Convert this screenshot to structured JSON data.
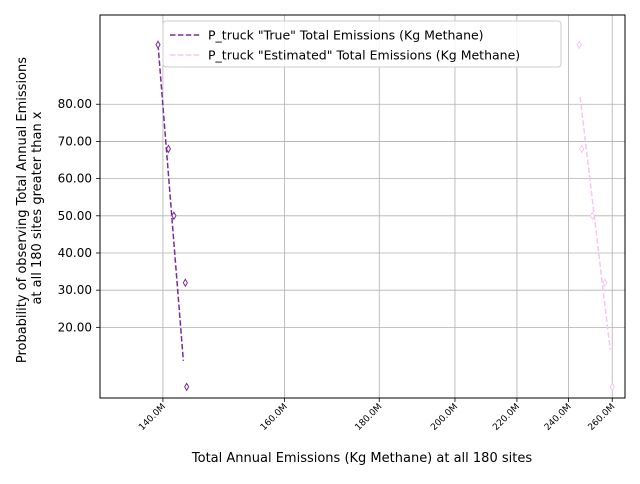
{
  "chart_data": {
    "type": "line",
    "title": "",
    "xlabel": "Total Annual Emissions (Kg Methane) at all 180 sites",
    "ylabel_lines": [
      "Probability of observing Total Annual Emissions",
      "at all 180 sites greater than x"
    ],
    "xlim": [
      131500000,
      266500000
    ],
    "ylim": [
      104,
      1
    ],
    "y_inverted": true,
    "x_scale": "reciprocal",
    "grid": true,
    "legend_position": "top-right",
    "x_ticks": [
      {
        "value": 140000000,
        "label": "140.0M"
      },
      {
        "value": 160000000,
        "label": "160.0M"
      },
      {
        "value": 180000000,
        "label": "180.0M"
      },
      {
        "value": 200000000,
        "label": "200.0M"
      },
      {
        "value": 220000000,
        "label": "220.0M"
      },
      {
        "value": 240000000,
        "label": "240.0M"
      },
      {
        "value": 260000000,
        "label": "260.0M"
      }
    ],
    "y_ticks": [
      {
        "value": 20,
        "label": "20.00"
      },
      {
        "value": 30,
        "label": "30.00"
      },
      {
        "value": 40,
        "label": "40.00"
      },
      {
        "value": 50,
        "label": "50.00"
      },
      {
        "value": 60,
        "label": "60.00"
      },
      {
        "value": 70,
        "label": "70.00"
      },
      {
        "value": 80,
        "label": "80.00"
      }
    ],
    "series": [
      {
        "name": "P_truck \"True\" Total Emissions (Kg Methane)",
        "color": "#7b2a9e",
        "line_style": "dashed",
        "marker": "thin-diamond",
        "points": [
          {
            "x": 139300000,
            "y": 96
          },
          {
            "x": 140800000,
            "y": 68
          },
          {
            "x": 141600000,
            "y": 50
          },
          {
            "x": 143300000,
            "y": 32
          },
          {
            "x": 143500000,
            "y": 4
          }
        ],
        "fit_line": [
          {
            "x": 139300000,
            "y": 96
          },
          {
            "x": 143000000,
            "y": 11
          }
        ]
      },
      {
        "name": "P_truck \"Estimated\" Total Emissions (Kg Methane)",
        "color": "#f7c6f2",
        "line_style": "dashed",
        "marker": "thin-diamond",
        "points": [
          {
            "x": 244600000,
            "y": 96
          },
          {
            "x": 245700000,
            "y": 68
          },
          {
            "x": 250500000,
            "y": 50
          },
          {
            "x": 256400000,
            "y": 32
          },
          {
            "x": 260000000,
            "y": 4
          }
        ],
        "fit_line": [
          {
            "x": 245000000,
            "y": 82
          },
          {
            "x": 259000000,
            "y": 14
          }
        ]
      }
    ]
  }
}
